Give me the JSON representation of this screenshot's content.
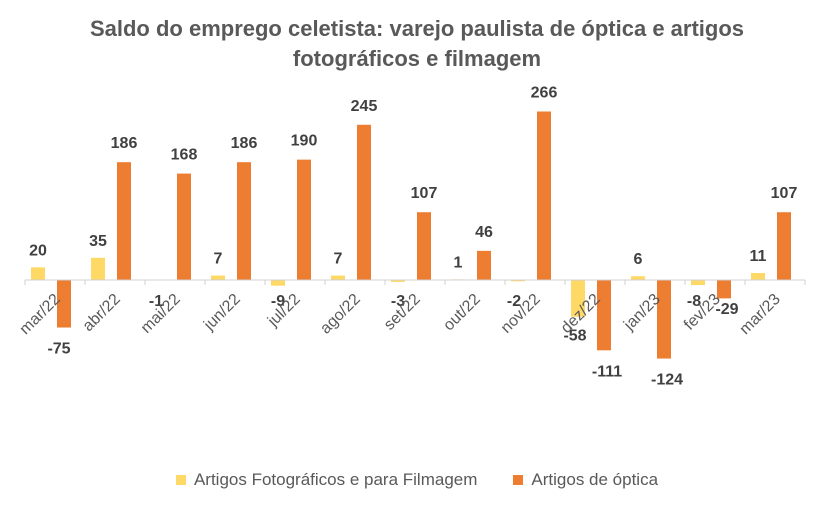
{
  "chart_data": {
    "type": "bar",
    "title_line1": "Saldo do emprego celetista: varejo paulista de óptica e artigos",
    "title_line2": "fotográficos e filmagem",
    "categories": [
      "mar/22",
      "abr/22",
      "mai/22",
      "jun/22",
      "jul/22",
      "ago/22",
      "set/22",
      "out/22",
      "nov/22",
      "dez/22",
      "jan/23",
      "fev/23",
      "mar/23"
    ],
    "series": [
      {
        "name": "Artigos Fotográficos e para Filmagem",
        "color": "#FFD966",
        "values": [
          20,
          35,
          null,
          7,
          -9,
          7,
          -3,
          1,
          -2,
          -58,
          6,
          -8,
          11
        ]
      },
      {
        "name": "Artigos de óptica",
        "color": "#ED7D31",
        "values": [
          -75,
          186,
          168,
          186,
          190,
          245,
          107,
          46,
          266,
          -111,
          -124,
          -29,
          107
        ]
      }
    ],
    "ylim": [
      -130,
      275
    ],
    "legend": "bottom",
    "grid": false
  }
}
